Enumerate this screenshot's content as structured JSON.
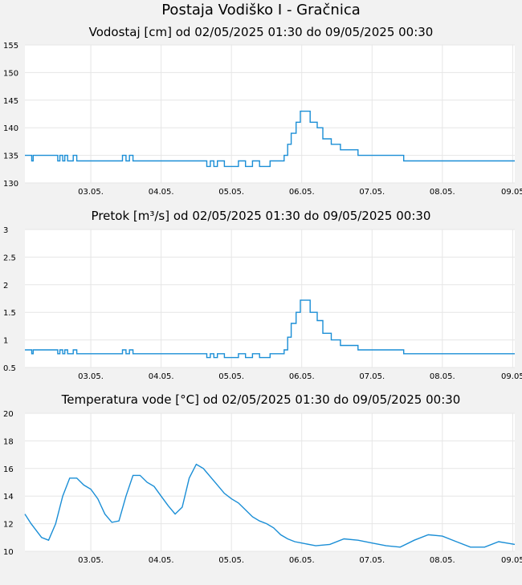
{
  "page": {
    "title": "Postaja Vodiško I - Gračnica"
  },
  "colors": {
    "series": "#1a8ed6",
    "plot_bg": "#ffffff",
    "grid": "#e6e6e6",
    "page_bg": "#f2f2f2"
  },
  "chart_data": [
    {
      "type": "line",
      "title": "Vodostaj [cm] od 02/05/2025 01:30 do 09/05/2025 00:30",
      "xlabel": "",
      "ylabel": "",
      "ylim": [
        130,
        155
      ],
      "yticks": [
        130,
        135,
        140,
        145,
        150,
        155
      ],
      "ytick_labels": [
        "130",
        "135",
        "140",
        "145",
        "150",
        "155"
      ],
      "xlim": [
        0.0625,
        7.03
      ],
      "xticks": [
        1,
        2,
        3,
        4,
        5,
        6,
        7
      ],
      "xtick_labels": [
        "03.05.",
        "04.05.",
        "05.05.",
        "06.05.",
        "07.05.",
        "08.05.",
        "09.05"
      ],
      "grid": true,
      "x_unit": "days since 02.05. 00:00",
      "x": [
        0.0625,
        0.15,
        0.16,
        0.18,
        0.5,
        0.53,
        0.56,
        0.6,
        0.63,
        0.67,
        0.7,
        0.75,
        0.8,
        1.4,
        1.45,
        1.5,
        1.55,
        1.6,
        2.6,
        2.65,
        2.7,
        2.75,
        2.8,
        2.9,
        3.0,
        3.1,
        3.2,
        3.3,
        3.4,
        3.5,
        3.55,
        3.62,
        3.7,
        3.75,
        3.8,
        3.85,
        3.92,
        3.98,
        4.05,
        4.12,
        4.22,
        4.3,
        4.42,
        4.55,
        4.7,
        4.8,
        4.9,
        5.0,
        5.4,
        5.45,
        5.5,
        5.55,
        5.6,
        6.0,
        6.5,
        7.03
      ],
      "y": [
        135,
        135,
        134,
        135,
        135,
        134,
        135,
        134,
        135,
        134,
        134,
        135,
        134,
        134,
        135,
        134,
        135,
        134,
        134,
        133,
        134,
        133,
        134,
        133,
        133,
        134,
        133,
        134,
        133,
        133,
        134,
        134,
        134,
        135,
        137,
        139,
        141,
        143,
        143,
        141,
        140,
        138,
        137,
        136,
        136,
        135,
        135,
        135,
        135,
        134,
        134,
        134,
        134,
        134,
        134,
        134
      ]
    },
    {
      "type": "line",
      "title": "Pretok [m³/s] od 02/05/2025 01:30 do 09/05/2025 00:30",
      "xlabel": "",
      "ylabel": "",
      "ylim": [
        0.5,
        3
      ],
      "yticks": [
        0.5,
        1,
        1.5,
        2,
        2.5,
        3
      ],
      "ytick_labels": [
        "0.5",
        "1",
        "1.5",
        "2",
        "2.5",
        "3"
      ],
      "xlim": [
        0.0625,
        7.03
      ],
      "xticks": [
        1,
        2,
        3,
        4,
        5,
        6,
        7
      ],
      "xtick_labels": [
        "03.05.",
        "04.05.",
        "05.05.",
        "06.05.",
        "07.05.",
        "08.05.",
        "09.05"
      ],
      "grid": true,
      "x_unit": "days since 02.05. 00:00",
      "x": [
        0.0625,
        0.15,
        0.16,
        0.18,
        0.5,
        0.53,
        0.56,
        0.6,
        0.63,
        0.67,
        0.7,
        0.75,
        0.8,
        1.4,
        1.45,
        1.5,
        1.55,
        1.6,
        2.6,
        2.65,
        2.7,
        2.75,
        2.8,
        2.9,
        3.0,
        3.1,
        3.2,
        3.3,
        3.4,
        3.5,
        3.55,
        3.62,
        3.7,
        3.75,
        3.8,
        3.85,
        3.92,
        3.98,
        4.05,
        4.12,
        4.22,
        4.3,
        4.42,
        4.55,
        4.7,
        4.8,
        4.9,
        5.0,
        5.4,
        5.45,
        5.5,
        5.55,
        5.6,
        6.0,
        6.5,
        7.03
      ],
      "y": [
        0.82,
        0.82,
        0.75,
        0.82,
        0.82,
        0.75,
        0.82,
        0.75,
        0.82,
        0.75,
        0.75,
        0.82,
        0.75,
        0.75,
        0.82,
        0.75,
        0.82,
        0.75,
        0.75,
        0.68,
        0.75,
        0.68,
        0.75,
        0.68,
        0.68,
        0.75,
        0.68,
        0.75,
        0.68,
        0.68,
        0.75,
        0.75,
        0.75,
        0.82,
        1.05,
        1.3,
        1.5,
        1.72,
        1.72,
        1.5,
        1.35,
        1.12,
        1.0,
        0.9,
        0.9,
        0.82,
        0.82,
        0.82,
        0.82,
        0.75,
        0.75,
        0.75,
        0.75,
        0.75,
        0.75,
        0.75
      ]
    },
    {
      "type": "line",
      "title": "Temperatura vode [°C] od 02/05/2025 01:30 do 09/05/2025 00:30",
      "xlabel": "",
      "ylabel": "",
      "ylim": [
        10,
        20
      ],
      "yticks": [
        10,
        12,
        14,
        16,
        18,
        20
      ],
      "ytick_labels": [
        "10",
        "12",
        "14",
        "16",
        "18",
        "20"
      ],
      "xlim": [
        0.0625,
        7.03
      ],
      "xticks": [
        1,
        2,
        3,
        4,
        5,
        6,
        7
      ],
      "xtick_labels": [
        "03.05.",
        "04.05.",
        "05.05.",
        "06.05.",
        "07.05.",
        "08.05.",
        "09.05"
      ],
      "grid": true,
      "x_unit": "days since 02.05. 00:00",
      "x": [
        0.0625,
        0.15,
        0.3,
        0.4,
        0.5,
        0.6,
        0.7,
        0.8,
        0.9,
        1.0,
        1.1,
        1.2,
        1.3,
        1.4,
        1.5,
        1.6,
        1.7,
        1.8,
        1.9,
        2.0,
        2.1,
        2.2,
        2.3,
        2.4,
        2.5,
        2.6,
        2.7,
        2.8,
        2.9,
        3.0,
        3.1,
        3.2,
        3.3,
        3.4,
        3.5,
        3.6,
        3.7,
        3.8,
        3.9,
        4.0,
        4.2,
        4.4,
        4.6,
        4.8,
        5.0,
        5.2,
        5.4,
        5.6,
        5.8,
        6.0,
        6.2,
        6.4,
        6.6,
        6.8,
        7.03
      ],
      "y": [
        12.7,
        12.0,
        11.0,
        10.8,
        12.0,
        14.0,
        15.3,
        15.3,
        14.8,
        14.5,
        13.8,
        12.7,
        12.1,
        12.2,
        14.0,
        15.5,
        15.5,
        15.0,
        14.7,
        14.0,
        13.3,
        12.7,
        13.2,
        15.3,
        16.3,
        16.0,
        15.4,
        14.8,
        14.2,
        13.8,
        13.5,
        13.0,
        12.5,
        12.2,
        12.0,
        11.7,
        11.2,
        10.9,
        10.7,
        10.6,
        10.4,
        10.5,
        10.9,
        10.8,
        10.6,
        10.4,
        10.3,
        10.8,
        11.2,
        11.1,
        10.7,
        10.3,
        10.3,
        10.7,
        10.5
      ]
    }
  ]
}
